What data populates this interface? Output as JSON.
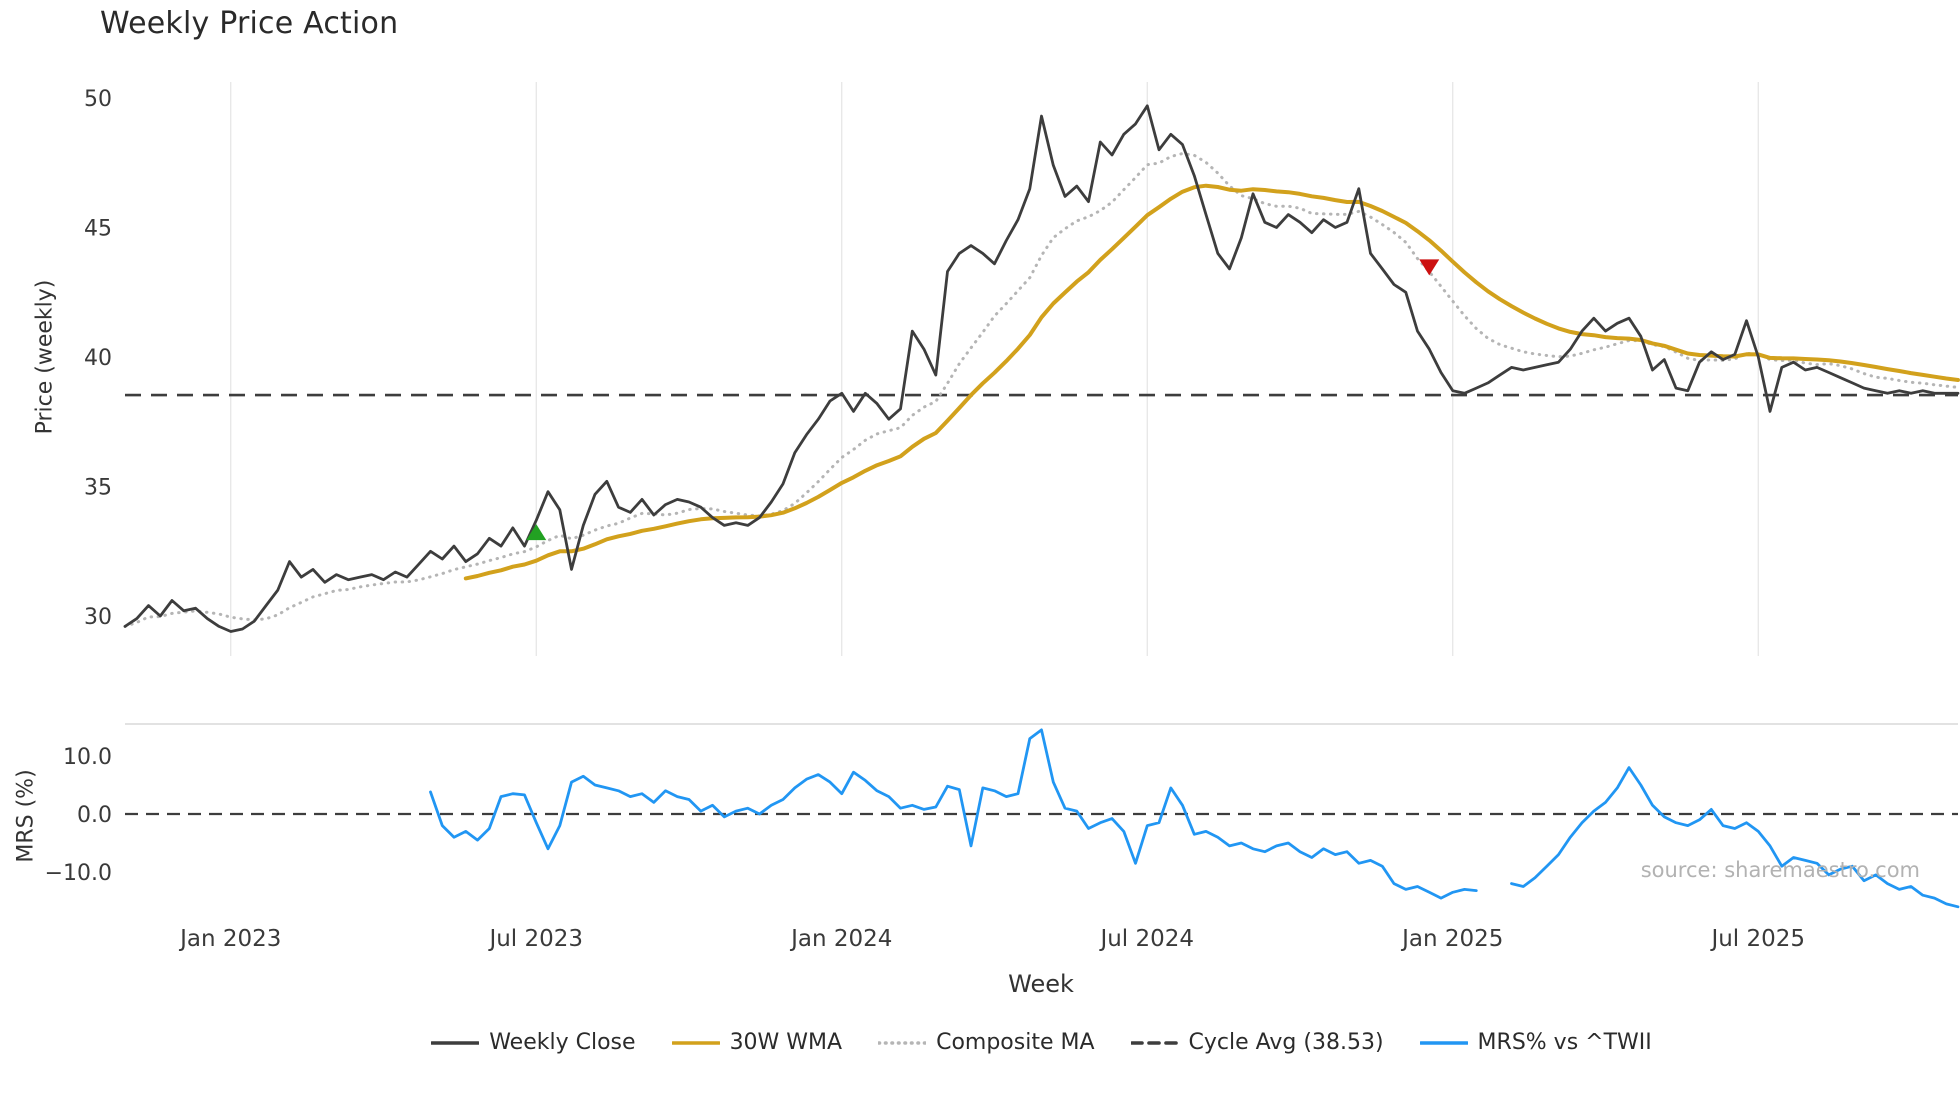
{
  "title": "Weekly Price Action",
  "source_note": "source: sharemaestro.com",
  "axes": {
    "price_ylabel": "Price (weekly)",
    "mrs_ylabel": "MRS (%)",
    "xlabel": "Week"
  },
  "colors": {
    "close": "#3d3d3d",
    "wma": "#d2a11c",
    "composite": "#b5b5b5",
    "cycle": "#3d3d3d",
    "mrs": "#2196f3",
    "buy": "#22a122",
    "sell": "#cc1111",
    "grid": "#e4e4e4",
    "panel_border": "#d9d9d9",
    "tick_text": "#3a3a3a"
  },
  "legend": [
    {
      "label": "Weekly Close",
      "color": "#3d3d3d",
      "style": "solid"
    },
    {
      "label": "30W WMA",
      "color": "#d2a11c",
      "style": "solid"
    },
    {
      "label": "Composite MA",
      "color": "#b5b5b5",
      "style": "dotted"
    },
    {
      "label": "Cycle Avg (38.53)",
      "color": "#3d3d3d",
      "style": "dashed"
    },
    {
      "label": "MRS% vs ^TWII",
      "color": "#2196f3",
      "style": "solid"
    }
  ],
  "chart_data": [
    {
      "type": "line",
      "title": "Weekly Price Action",
      "xlabel": "Week",
      "ylabel": "Price (weekly)",
      "ylim": [
        29.0,
        50.8
      ],
      "y_ticks": [
        30,
        35,
        40,
        45,
        50
      ],
      "x_tick_positions": [
        9,
        35,
        61,
        87,
        113,
        139
      ],
      "x_tick_labels": [
        "Jan 2023",
        "Jul 2023",
        "Jan 2024",
        "Jul 2024",
        "Jan 2025",
        "Jul 2025"
      ],
      "cycle_avg": 38.53,
      "series": [
        {
          "name": "Weekly Close",
          "color": "#3d3d3d",
          "style": "solid",
          "start_week": 0,
          "values": [
            29.6,
            29.9,
            30.4,
            30.0,
            30.6,
            30.2,
            30.3,
            29.9,
            29.6,
            29.4,
            29.5,
            29.8,
            30.4,
            31.0,
            32.1,
            31.5,
            31.8,
            31.3,
            31.6,
            31.4,
            31.5,
            31.6,
            31.4,
            31.7,
            31.5,
            32.0,
            32.5,
            32.2,
            32.7,
            32.1,
            32.4,
            33.0,
            32.7,
            33.4,
            32.7,
            33.7,
            34.8,
            34.1,
            31.8,
            33.5,
            34.7,
            35.2,
            34.2,
            34.0,
            34.5,
            33.9,
            34.3,
            34.5,
            34.4,
            34.2,
            33.8,
            33.5,
            33.6,
            33.5,
            33.8,
            34.4,
            35.1,
            36.3,
            37.0,
            37.6,
            38.3,
            38.6,
            37.9,
            38.6,
            38.2,
            37.6,
            38.0,
            41.0,
            40.3,
            39.3,
            43.3,
            44.0,
            44.3,
            44.0,
            43.6,
            44.5,
            45.3,
            46.5,
            49.3,
            47.4,
            46.2,
            46.6,
            46.0,
            48.3,
            47.8,
            48.6,
            49.0,
            49.7,
            48.0,
            48.6,
            48.2,
            47.0,
            45.5,
            44.0,
            43.4,
            44.6,
            46.3,
            45.2,
            45.0,
            45.5,
            45.2,
            44.8,
            45.3,
            45.0,
            45.2,
            46.5,
            44.0,
            43.4,
            42.8,
            42.5,
            41.0,
            40.3,
            39.4,
            38.7,
            38.6,
            38.8,
            39.0,
            39.3,
            39.6,
            39.5,
            39.6,
            39.7,
            39.8,
            40.3,
            41.0,
            41.5,
            41.0,
            41.3,
            41.5,
            40.8,
            39.5,
            39.9,
            38.8,
            38.7,
            39.8,
            40.2,
            39.9,
            40.1,
            41.4,
            40.0,
            37.9,
            39.6,
            39.8,
            39.5,
            39.6,
            39.4,
            39.2,
            39.0,
            38.8,
            38.7,
            38.6,
            38.7,
            38.6,
            38.7,
            38.6,
            38.6,
            38.6
          ]
        },
        {
          "name": "30W WMA",
          "color": "#d2a11c",
          "style": "solid",
          "derived": "wma30_of_weekly_close"
        },
        {
          "name": "Composite MA",
          "color": "#b5b5b5",
          "style": "dotted",
          "derived": "mean_sma_5_10_20_of_weekly_close"
        },
        {
          "name": "Cycle Avg (38.53)",
          "color": "#3d3d3d",
          "style": "dashed",
          "constant": 38.53
        }
      ],
      "markers": [
        {
          "name": "buy-signal",
          "shape": "triangle-up",
          "color": "#22a122",
          "week": 35,
          "value": 33.2
        },
        {
          "name": "sell-signal",
          "shape": "triangle-down",
          "color": "#cc1111",
          "week": 111,
          "value": 43.5
        }
      ]
    },
    {
      "type": "line",
      "ylabel": "MRS (%)",
      "ylim": [
        -17.5,
        15.5
      ],
      "y_ticks": [
        -10,
        0,
        10
      ],
      "y_tick_labels": [
        "−10.0",
        "0.0",
        "10.0"
      ],
      "zero_line": 0,
      "series": [
        {
          "name": "MRS% vs ^TWII",
          "color": "#2196f3",
          "style": "solid",
          "start_week": 26,
          "values": [
            3.8,
            -2.0,
            -4.0,
            -3.0,
            -4.5,
            -2.5,
            3.0,
            3.5,
            3.3,
            -1.5,
            -6.0,
            -2.0,
            5.5,
            6.5,
            5.0,
            4.5,
            4.0,
            3.0,
            3.5,
            2.0,
            4.0,
            3.0,
            2.5,
            0.5,
            1.5,
            -0.5,
            0.5,
            1.0,
            0.0,
            1.5,
            2.5,
            4.5,
            6.0,
            6.8,
            5.5,
            3.5,
            7.2,
            5.8,
            4.0,
            3.0,
            1.0,
            1.5,
            0.8,
            1.2,
            4.8,
            4.2,
            -5.5,
            4.5,
            4.0,
            3.0,
            3.5,
            13.0,
            14.5,
            5.5,
            1.0,
            0.5,
            -2.5,
            -1.5,
            -0.8,
            -3.0,
            -8.5,
            -2.0,
            -1.5,
            4.5,
            1.5,
            -3.5,
            -3.0,
            -4.0,
            -5.5,
            -5.0,
            -6.0,
            -6.5,
            -5.5,
            -5.0,
            -6.5,
            -7.5,
            -6.0,
            -7.0,
            -6.5,
            -8.5,
            -8.0,
            -9.0,
            -12.0,
            -13.0,
            -12.5,
            -13.5,
            -14.5,
            -13.5,
            -13.0,
            -13.2,
            null,
            null,
            -12.0,
            -12.5,
            -11.0,
            -9.0,
            -7.0,
            -4.0,
            -1.5,
            0.5,
            2.0,
            4.5,
            8.0,
            5.0,
            1.5,
            -0.5,
            -1.5,
            -2.0,
            -1.0,
            0.8,
            -2.0,
            -2.5,
            -1.5,
            -3.0,
            -5.5,
            -9.0,
            -7.5,
            -8.0,
            -8.5,
            -10.5,
            -9.5,
            -9.0,
            -11.5,
            -10.5,
            -12.0,
            -13.0,
            -12.5,
            -14.0,
            -14.5,
            -15.5,
            -16.0
          ]
        }
      ]
    }
  ]
}
